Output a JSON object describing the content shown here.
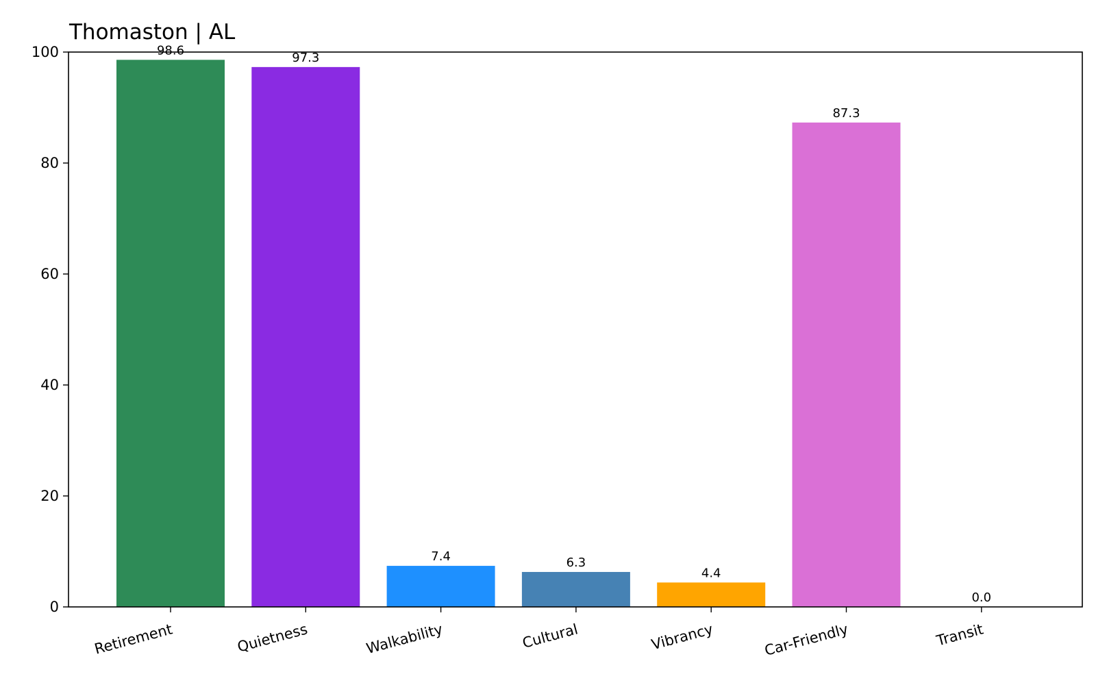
{
  "chart_data": {
    "type": "bar",
    "title": "Thomaston | AL",
    "xlabel": "",
    "ylabel": "",
    "categories": [
      "Retirement",
      "Quietness",
      "Walkability",
      "Cultural",
      "Vibrancy",
      "Car-Friendly",
      "Transit"
    ],
    "values": [
      98.6,
      97.3,
      7.4,
      6.3,
      4.4,
      87.3,
      0.0
    ],
    "value_labels": [
      "98.6",
      "97.3",
      "7.4",
      "6.3",
      "4.4",
      "87.3",
      "0.0"
    ],
    "colors": [
      "#2e8b57",
      "#8a2be2",
      "#1e90ff",
      "#4682b4",
      "#ffa500",
      "#da70d6",
      "#708090"
    ],
    "ylim": [
      0,
      100
    ],
    "yticks": [
      0,
      20,
      40,
      60,
      80,
      100
    ],
    "ytick_labels": [
      "0",
      "20",
      "40",
      "60",
      "80",
      "100"
    ],
    "grid": false,
    "legend": "none"
  }
}
